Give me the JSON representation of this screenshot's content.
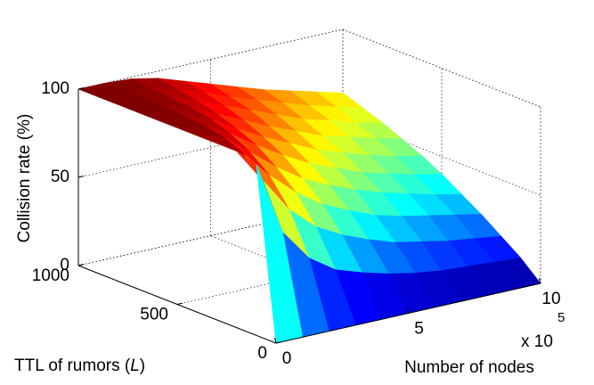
{
  "chart_data": {
    "type": "surface",
    "colormap": "jet",
    "xlabel": "Number of nodes",
    "ylabel": {
      "text": "TTL of rumors (",
      "italic": "L",
      "end": ")"
    },
    "zlabel": "Collision rate (%)",
    "x_scale_label": "x 10",
    "x_scale_exponent": 5,
    "x": [
      0,
      1,
      2,
      3,
      4,
      5,
      6,
      7,
      8,
      9,
      10
    ],
    "y": [
      0,
      100,
      200,
      300,
      400,
      500,
      600,
      700,
      800,
      900,
      1000
    ],
    "z": [
      [
        0,
        0,
        0,
        0,
        0,
        0,
        0,
        0,
        0,
        0,
        0
      ],
      [
        97,
        55,
        37,
        27,
        22,
        18,
        15,
        13,
        12,
        11,
        10
      ],
      [
        100,
        80,
        60,
        47,
        39,
        33,
        28,
        25,
        22,
        20,
        18
      ],
      [
        100,
        91,
        75,
        62,
        52,
        45,
        39,
        35,
        32,
        29,
        26
      ],
      [
        100,
        96,
        84,
        72,
        62,
        55,
        49,
        44,
        40,
        36,
        33
      ],
      [
        100,
        98,
        90,
        80,
        71,
        63,
        57,
        51,
        47,
        43,
        40
      ],
      [
        100,
        99,
        94,
        85,
        77,
        70,
        63,
        58,
        53,
        49,
        46
      ],
      [
        100,
        100,
        96,
        89,
        82,
        75,
        69,
        63,
        59,
        55,
        51
      ],
      [
        100,
        100,
        97,
        92,
        86,
        80,
        74,
        68,
        64,
        59,
        56
      ],
      [
        100,
        100,
        98,
        94,
        89,
        83,
        78,
        73,
        68,
        64,
        60
      ],
      [
        100,
        100,
        99,
        96,
        91,
        86,
        81,
        76,
        72,
        68,
        64
      ]
    ],
    "xlim": [
      0,
      10
    ],
    "ylim": [
      0,
      1000
    ],
    "zlim": [
      0,
      100
    ],
    "xticks": [
      0,
      5,
      10
    ],
    "yticks": [
      0,
      500,
      1000
    ],
    "zticks": [
      0,
      50,
      100
    ],
    "grid": true
  }
}
